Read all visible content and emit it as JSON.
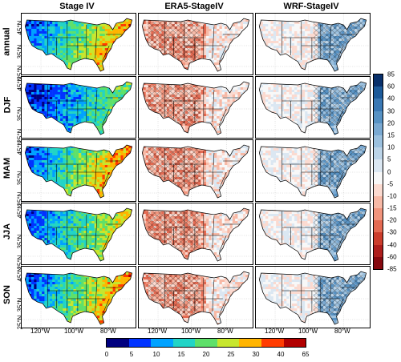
{
  "columns": {
    "stage_iv": "Stage IV",
    "era5_minus_stageiv": "ERA5-StageIV",
    "wrf_minus_stageiv": "WRF-StageIV"
  },
  "seasons": [
    "annual",
    "DJF",
    "MAM",
    "JJA",
    "SON"
  ],
  "lat_labels": {
    "top_45": "45°N",
    "top_35": "35°N",
    "r1_45": "45°N",
    "r1_25": "25°N",
    "r1_35": "35°N",
    "r2_45": "45°N",
    "r2_25": "25°N",
    "r2_35": "35°N",
    "r3_45": "45°N",
    "r3_25": "25°N",
    "r3_35": "35°N",
    "r4_45": "45°N",
    "r4_25": "25°N",
    "r4_35": "35°N",
    "bottom_25": "25°N"
  },
  "lon_labels": [
    "120°W",
    "100°W",
    "80°W"
  ],
  "difference_colorbar": {
    "ticks": [
      "85",
      "60",
      "40",
      "30",
      "20",
      "15",
      "10",
      "5",
      "0",
      "-5",
      "-10",
      "-15",
      "-20",
      "-30",
      "-40",
      "-60",
      "-85"
    ],
    "colors": [
      "#08306b",
      "#1c5a9a",
      "#3a78b4",
      "#5792c4",
      "#7aa9d2",
      "#9bc0de",
      "#bcd4e8",
      "#dbe7f2",
      "#f8f8f8",
      "#fbdad0",
      "#f7b9a6",
      "#f1947c",
      "#e46a52",
      "#cc3d2c",
      "#ae1e1c",
      "#86090f"
    ]
  },
  "precip_colorbar": {
    "ticks": [
      "0",
      "5",
      "10",
      "15",
      "20",
      "25",
      "30",
      "40",
      "65"
    ],
    "colors": [
      "#00007f",
      "#0033ff",
      "#00a2ff",
      "#22d4c6",
      "#5ee06a",
      "#c7e62e",
      "#ffb400",
      "#ff3c00",
      "#b20000"
    ]
  }
}
